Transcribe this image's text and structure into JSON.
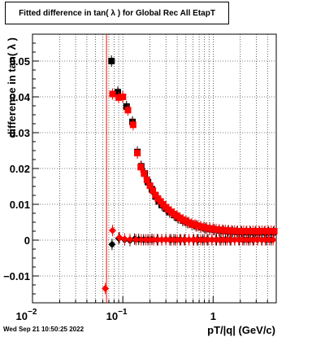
{
  "title": "Fitted difference in tan( λ ) for Global Rec All EtapT",
  "footer": "Wed Sep 21 10:50:25 2022",
  "chart_data": {
    "type": "scatter",
    "xlabel": "pT/|q| (GeV/c)",
    "ylabel": "difference in tan( λ )",
    "xscale": "log",
    "xlim": [
      0.01,
      5
    ],
    "ylim": [
      -0.0175,
      0.0575
    ],
    "grid": true,
    "x_ticks": [
      {
        "value": 0.01,
        "label": "10",
        "sup": "−2"
      },
      {
        "value": 0.1,
        "label": "10",
        "sup": "−1"
      },
      {
        "value": 1,
        "label": "1",
        "sup": ""
      }
    ],
    "y_ticks": [
      {
        "value": 0.05,
        "label": "0.05"
      },
      {
        "value": 0.04,
        "label": "0.04"
      },
      {
        "value": 0.03,
        "label": "0.03"
      },
      {
        "value": 0.02,
        "label": "0.02"
      },
      {
        "value": 0.01,
        "label": "0.01"
      },
      {
        "value": 0,
        "label": "0"
      },
      {
        "value": -0.01,
        "label": "−0.01"
      }
    ],
    "vertical_line": {
      "x": 0.066,
      "color": "#ff0000"
    },
    "series": [
      {
        "marker": "square",
        "color": "#000000",
        "points": [
          [
            0.075,
            0.05
          ],
          [
            0.088,
            0.0413
          ],
          [
            0.1,
            0.04
          ],
          [
            0.11,
            0.0373
          ],
          [
            0.128,
            0.033
          ],
          [
            0.145,
            0.0246
          ],
          [
            0.16,
            0.0206
          ],
          [
            0.175,
            0.0186
          ],
          [
            0.19,
            0.0162
          ],
          [
            0.21,
            0.0142
          ],
          [
            0.23,
            0.0122
          ],
          [
            0.25,
            0.0108
          ],
          [
            0.27,
            0.0098
          ],
          [
            0.3,
            0.0088
          ],
          [
            0.33,
            0.0078
          ],
          [
            0.37,
            0.007
          ],
          [
            0.41,
            0.0062
          ],
          [
            0.46,
            0.0055
          ],
          [
            0.52,
            0.0049
          ],
          [
            0.58,
            0.0044
          ],
          [
            0.65,
            0.004
          ],
          [
            0.73,
            0.0036
          ],
          [
            0.82,
            0.0033
          ],
          [
            0.92,
            0.0031
          ],
          [
            1.03,
            0.0029
          ],
          [
            1.16,
            0.0027
          ],
          [
            1.3,
            0.0026
          ],
          [
            1.46,
            0.0025
          ],
          [
            1.64,
            0.0024
          ],
          [
            1.84,
            0.0023
          ],
          [
            2.07,
            0.0023
          ],
          [
            2.32,
            0.0022
          ],
          [
            2.6,
            0.0022
          ],
          [
            2.92,
            0.0022
          ],
          [
            3.28,
            0.0022
          ],
          [
            3.68,
            0.0022
          ],
          [
            4.13,
            0.0022
          ],
          [
            4.64,
            0.0022
          ]
        ]
      },
      {
        "marker": "square",
        "color": "#ff0000",
        "points": [
          [
            0.077,
            0.0408
          ],
          [
            0.09,
            0.0398
          ],
          [
            0.1,
            0.04
          ],
          [
            0.114,
            0.0363
          ],
          [
            0.13,
            0.0322
          ],
          [
            0.145,
            0.0243
          ],
          [
            0.158,
            0.0204
          ],
          [
            0.172,
            0.0186
          ],
          [
            0.185,
            0.0168
          ],
          [
            0.2,
            0.0152
          ],
          [
            0.215,
            0.0138
          ],
          [
            0.23,
            0.0126
          ],
          [
            0.245,
            0.0116
          ],
          [
            0.262,
            0.0108
          ],
          [
            0.28,
            0.01
          ],
          [
            0.3,
            0.0092
          ],
          [
            0.32,
            0.0085
          ],
          [
            0.345,
            0.0079
          ],
          [
            0.37,
            0.0073
          ],
          [
            0.4,
            0.0067
          ],
          [
            0.43,
            0.0062
          ],
          [
            0.465,
            0.0057
          ],
          [
            0.5,
            0.0053
          ],
          [
            0.54,
            0.0049
          ],
          [
            0.58,
            0.0046
          ],
          [
            0.63,
            0.0043
          ],
          [
            0.68,
            0.004
          ],
          [
            0.73,
            0.0038
          ],
          [
            0.79,
            0.0036
          ],
          [
            0.85,
            0.0034
          ],
          [
            0.92,
            0.0033
          ],
          [
            1.0,
            0.0031
          ],
          [
            1.08,
            0.003
          ],
          [
            1.17,
            0.0029
          ],
          [
            1.27,
            0.0028
          ],
          [
            1.37,
            0.0027
          ],
          [
            1.48,
            0.0027
          ],
          [
            1.6,
            0.0026
          ],
          [
            1.73,
            0.0026
          ],
          [
            1.87,
            0.0025
          ],
          [
            2.02,
            0.0025
          ],
          [
            2.18,
            0.0025
          ],
          [
            2.36,
            0.0025
          ],
          [
            2.55,
            0.0025
          ],
          [
            2.76,
            0.0025
          ],
          [
            2.98,
            0.0025
          ],
          [
            3.22,
            0.0025
          ],
          [
            3.48,
            0.0025
          ],
          [
            3.76,
            0.0025
          ],
          [
            4.07,
            0.0025
          ],
          [
            4.4,
            0.0025
          ],
          [
            4.75,
            0.0025
          ]
        ]
      },
      {
        "marker": "diamond",
        "color": "#000000",
        "points": [
          [
            0.076,
            -0.0012
          ],
          [
            0.09,
            0.0005
          ],
          [
            0.105,
            0.0001
          ],
          [
            0.12,
            -0.0001
          ],
          [
            0.135,
            0.0003
          ],
          [
            0.15,
            0.0002
          ],
          [
            0.17,
            0.0001
          ],
          [
            0.19,
            0.0001
          ],
          [
            0.21,
            0.0002
          ],
          [
            0.24,
            0.0001
          ],
          [
            0.27,
            0.0001
          ],
          [
            0.3,
            0.0002
          ],
          [
            0.34,
            0.0001
          ],
          [
            0.38,
            0.0001
          ],
          [
            0.43,
            0.0001
          ],
          [
            0.48,
            0.0001
          ],
          [
            0.54,
            0.0001
          ],
          [
            0.61,
            0.0001
          ],
          [
            0.68,
            0.0001
          ],
          [
            0.77,
            0.0001
          ],
          [
            0.86,
            0.0001
          ],
          [
            0.97,
            0.0001
          ],
          [
            1.09,
            0.0001
          ],
          [
            1.22,
            0.0001
          ],
          [
            1.37,
            0.0001
          ],
          [
            1.54,
            0.0001
          ],
          [
            1.73,
            0.0001
          ],
          [
            1.95,
            0.0001
          ],
          [
            2.19,
            0.0001
          ],
          [
            2.46,
            0.0001
          ],
          [
            2.76,
            0.0001
          ],
          [
            3.1,
            0.0001
          ],
          [
            3.48,
            0.0001
          ],
          [
            3.91,
            0.0001
          ],
          [
            4.39,
            0.0001
          ]
        ]
      },
      {
        "marker": "diamond",
        "color": "#ff0000",
        "points": [
          [
            0.064,
            -0.0135
          ],
          [
            0.077,
            0.0027
          ],
          [
            0.092,
            0.0007
          ],
          [
            0.105,
            0.0003
          ],
          [
            0.12,
            0.0002
          ],
          [
            0.14,
            0.0001
          ],
          [
            0.16,
            0.0001
          ],
          [
            0.18,
            0.0001
          ],
          [
            0.2,
            0.0001
          ],
          [
            0.22,
            0.0001
          ],
          [
            0.245,
            0.0001
          ],
          [
            0.27,
            0.0001
          ],
          [
            0.3,
            0.0001
          ],
          [
            0.33,
            0.0001
          ],
          [
            0.365,
            0.0001
          ],
          [
            0.4,
            0.0001
          ],
          [
            0.44,
            0.0001
          ],
          [
            0.49,
            0.0001
          ],
          [
            0.54,
            0.0001
          ],
          [
            0.6,
            0.0001
          ],
          [
            0.66,
            0.0001
          ],
          [
            0.73,
            0.0001
          ],
          [
            0.8,
            0.0001
          ],
          [
            0.88,
            0.0001
          ],
          [
            0.97,
            0.0001
          ],
          [
            1.07,
            0.0001
          ],
          [
            1.18,
            0.0001
          ],
          [
            1.3,
            0.0001
          ],
          [
            1.43,
            0.0001
          ],
          [
            1.58,
            0.0001
          ],
          [
            1.74,
            0.0001
          ],
          [
            1.92,
            0.0001
          ],
          [
            2.11,
            0.0001
          ],
          [
            2.33,
            0.0001
          ],
          [
            2.57,
            0.0001
          ],
          [
            2.83,
            0.0001
          ],
          [
            3.12,
            0.0001
          ],
          [
            3.44,
            0.0001
          ],
          [
            3.79,
            0.0001
          ],
          [
            4.18,
            0.0001
          ],
          [
            4.61,
            0.0001
          ]
        ]
      }
    ]
  }
}
